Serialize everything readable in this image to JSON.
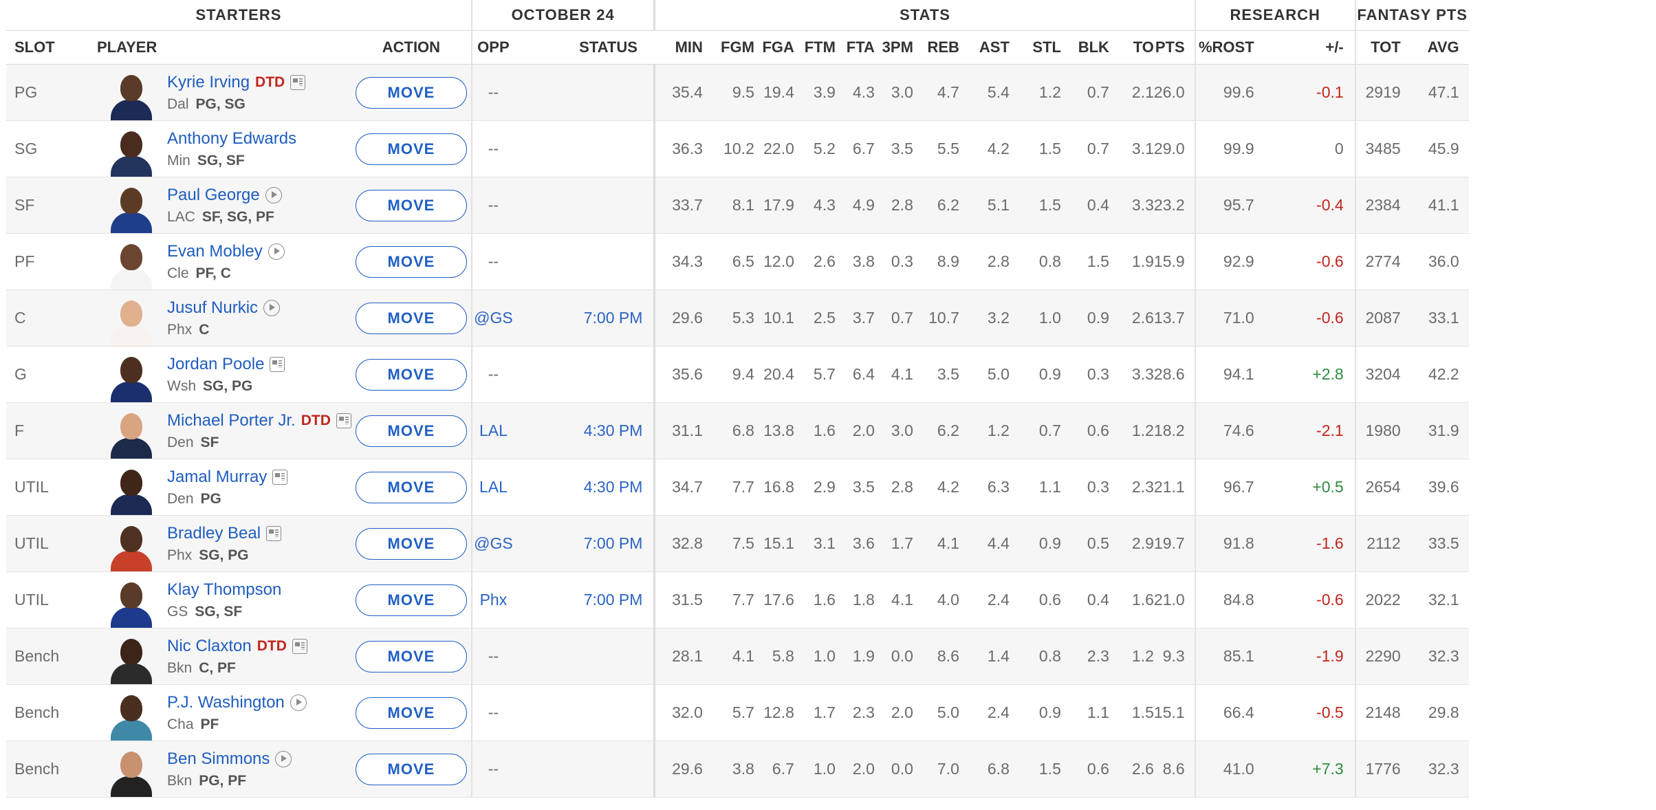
{
  "group_headers": {
    "starters": "STARTERS",
    "date": "OCTOBER 24",
    "stats": "STATS",
    "research": "RESEARCH",
    "fantasy": "FANTASY PTS"
  },
  "columns": {
    "slot": "SLOT",
    "player": "PLAYER",
    "action": "ACTION",
    "opp": "OPP",
    "status": "STATUS",
    "min": "MIN",
    "fgm": "FGM",
    "fga": "FGA",
    "ftm": "FTM",
    "fta": "FTA",
    "tpm": "3PM",
    "reb": "REB",
    "ast": "AST",
    "stl": "STL",
    "blk": "BLK",
    "to": "TO",
    "pts": "PTS",
    "rost": "%ROST",
    "pm": "+/-",
    "tot": "TOT",
    "avg": "AVG"
  },
  "move_label": "MOVE",
  "rows": [
    {
      "slot": "PG",
      "name": "Kyrie Irving",
      "dtd": "DTD",
      "icon": "news-icon",
      "team": "Dal",
      "pos": "PG, SG",
      "opp": "--",
      "status": "",
      "stats": [
        "35.4",
        "9.5",
        "19.4",
        "3.9",
        "4.3",
        "3.0",
        "4.7",
        "5.4",
        "1.2",
        "0.7",
        "2.1",
        "26.0"
      ],
      "rost": "99.6",
      "pm": "-0.1",
      "tot": "2919",
      "avg": "47.1"
    },
    {
      "slot": "SG",
      "name": "Anthony Edwards",
      "dtd": "",
      "icon": "",
      "team": "Min",
      "pos": "SG, SF",
      "opp": "--",
      "status": "",
      "stats": [
        "36.3",
        "10.2",
        "22.0",
        "5.2",
        "6.7",
        "3.5",
        "5.5",
        "4.2",
        "1.5",
        "0.7",
        "3.1",
        "29.0"
      ],
      "rost": "99.9",
      "pm": "0",
      "tot": "3485",
      "avg": "45.9"
    },
    {
      "slot": "SF",
      "name": "Paul George",
      "dtd": "",
      "icon": "play-icon",
      "team": "LAC",
      "pos": "SF, SG, PF",
      "opp": "--",
      "status": "",
      "stats": [
        "33.7",
        "8.1",
        "17.9",
        "4.3",
        "4.9",
        "2.8",
        "6.2",
        "5.1",
        "1.5",
        "0.4",
        "3.3",
        "23.2"
      ],
      "rost": "95.7",
      "pm": "-0.4",
      "tot": "2384",
      "avg": "41.1"
    },
    {
      "slot": "PF",
      "name": "Evan Mobley",
      "dtd": "",
      "icon": "play-icon",
      "team": "Cle",
      "pos": "PF, C",
      "opp": "--",
      "status": "",
      "stats": [
        "34.3",
        "6.5",
        "12.0",
        "2.6",
        "3.8",
        "0.3",
        "8.9",
        "2.8",
        "0.8",
        "1.5",
        "1.9",
        "15.9"
      ],
      "rost": "92.9",
      "pm": "-0.6",
      "tot": "2774",
      "avg": "36.0"
    },
    {
      "slot": "C",
      "name": "Jusuf Nurkic",
      "dtd": "",
      "icon": "play-icon",
      "team": "Phx",
      "pos": "C",
      "opp": "@GS",
      "status": "7:00 PM",
      "stats": [
        "29.6",
        "5.3",
        "10.1",
        "2.5",
        "3.7",
        "0.7",
        "10.7",
        "3.2",
        "1.0",
        "0.9",
        "2.6",
        "13.7"
      ],
      "rost": "71.0",
      "pm": "-0.6",
      "tot": "2087",
      "avg": "33.1"
    },
    {
      "slot": "G",
      "name": "Jordan Poole",
      "dtd": "",
      "icon": "news-icon",
      "team": "Wsh",
      "pos": "SG, PG",
      "opp": "--",
      "status": "",
      "stats": [
        "35.6",
        "9.4",
        "20.4",
        "5.7",
        "6.4",
        "4.1",
        "3.5",
        "5.0",
        "0.9",
        "0.3",
        "3.3",
        "28.6"
      ],
      "rost": "94.1",
      "pm": "+2.8",
      "tot": "3204",
      "avg": "42.2"
    },
    {
      "slot": "F",
      "name": "Michael Porter Jr.",
      "dtd": "DTD",
      "icon": "news-icon",
      "team": "Den",
      "pos": "SF",
      "opp": "LAL",
      "status": "4:30 PM",
      "stats": [
        "31.1",
        "6.8",
        "13.8",
        "1.6",
        "2.0",
        "3.0",
        "6.2",
        "1.2",
        "0.7",
        "0.6",
        "1.2",
        "18.2"
      ],
      "rost": "74.6",
      "pm": "-2.1",
      "tot": "1980",
      "avg": "31.9"
    },
    {
      "slot": "UTIL",
      "name": "Jamal Murray",
      "dtd": "",
      "icon": "news-icon",
      "team": "Den",
      "pos": "PG",
      "opp": "LAL",
      "status": "4:30 PM",
      "stats": [
        "34.7",
        "7.7",
        "16.8",
        "2.9",
        "3.5",
        "2.8",
        "4.2",
        "6.3",
        "1.1",
        "0.3",
        "2.3",
        "21.1"
      ],
      "rost": "96.7",
      "pm": "+0.5",
      "tot": "2654",
      "avg": "39.6"
    },
    {
      "slot": "UTIL",
      "name": "Bradley Beal",
      "dtd": "",
      "icon": "news-icon",
      "team": "Phx",
      "pos": "SG, PG",
      "opp": "@GS",
      "status": "7:00 PM",
      "stats": [
        "32.8",
        "7.5",
        "15.1",
        "3.1",
        "3.6",
        "1.7",
        "4.1",
        "4.4",
        "0.9",
        "0.5",
        "2.9",
        "19.7"
      ],
      "rost": "91.8",
      "pm": "-1.6",
      "tot": "2112",
      "avg": "33.5"
    },
    {
      "slot": "UTIL",
      "name": "Klay Thompson",
      "dtd": "",
      "icon": "",
      "team": "GS",
      "pos": "SG, SF",
      "opp": "Phx",
      "status": "7:00 PM",
      "stats": [
        "31.5",
        "7.7",
        "17.6",
        "1.6",
        "1.8",
        "4.1",
        "4.0",
        "2.4",
        "0.6",
        "0.4",
        "1.6",
        "21.0"
      ],
      "rost": "84.8",
      "pm": "-0.6",
      "tot": "2022",
      "avg": "32.1"
    },
    {
      "slot": "Bench",
      "name": "Nic Claxton",
      "dtd": "DTD",
      "icon": "news-icon",
      "team": "Bkn",
      "pos": "C, PF",
      "opp": "--",
      "status": "",
      "stats": [
        "28.1",
        "4.1",
        "5.8",
        "1.0",
        "1.9",
        "0.0",
        "8.6",
        "1.4",
        "0.8",
        "2.3",
        "1.2",
        "9.3"
      ],
      "rost": "85.1",
      "pm": "-1.9",
      "tot": "2290",
      "avg": "32.3"
    },
    {
      "slot": "Bench",
      "name": "P.J. Washington",
      "dtd": "",
      "icon": "play-icon",
      "team": "Cha",
      "pos": "PF",
      "opp": "--",
      "status": "",
      "stats": [
        "32.0",
        "5.7",
        "12.8",
        "1.7",
        "2.3",
        "2.0",
        "5.0",
        "2.4",
        "0.9",
        "1.1",
        "1.5",
        "15.1"
      ],
      "rost": "66.4",
      "pm": "-0.5",
      "tot": "2148",
      "avg": "29.8"
    },
    {
      "slot": "Bench",
      "name": "Ben Simmons",
      "dtd": "",
      "icon": "play-icon",
      "team": "Bkn",
      "pos": "PG, PF",
      "opp": "--",
      "status": "",
      "stats": [
        "29.6",
        "3.8",
        "6.7",
        "1.0",
        "2.0",
        "0.0",
        "7.0",
        "6.8",
        "1.5",
        "0.6",
        "2.6",
        "8.6"
      ],
      "rost": "41.0",
      "pm": "+7.3",
      "tot": "1776",
      "avg": "32.3"
    }
  ],
  "colors": {
    "link": "#1f5dbf",
    "dtd": "#c0261c",
    "negative": "#c0261c",
    "positive": "#2e8b3e",
    "row_alt": "#f6f6f6"
  }
}
